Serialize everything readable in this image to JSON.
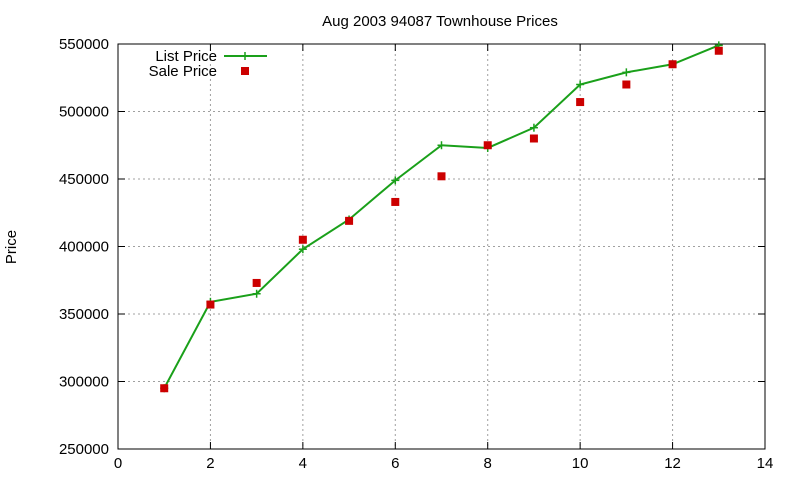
{
  "chart_data": {
    "type": "line",
    "title": "Aug 2003 94087 Townhouse Prices",
    "xlabel": "",
    "ylabel": "Price",
    "xlim": [
      0,
      14
    ],
    "ylim": [
      250000,
      550000
    ],
    "xticks": [
      "0",
      "2",
      "4",
      "6",
      "8",
      "10",
      "12",
      "14"
    ],
    "yticks": [
      "250000",
      "300000",
      "350000",
      "400000",
      "450000",
      "500000",
      "550000"
    ],
    "grid": true,
    "legend_position": "top-left",
    "series": [
      {
        "name": "List Price",
        "style": "line-points",
        "color": "#1aa01a",
        "x": [
          1,
          2,
          3,
          4,
          5,
          6,
          7,
          8,
          9,
          10,
          11,
          12,
          13
        ],
        "y": [
          295000,
          359000,
          365000,
          398000,
          420000,
          449000,
          475000,
          473000,
          488000,
          520000,
          529000,
          535000,
          549000
        ]
      },
      {
        "name": "Sale Price",
        "style": "points",
        "color": "#cc0000",
        "x": [
          1,
          2,
          3,
          4,
          5,
          6,
          7,
          8,
          9,
          10,
          11,
          12,
          13
        ],
        "y": [
          295000,
          357000,
          373000,
          405000,
          419000,
          433000,
          452000,
          475000,
          480000,
          507000,
          520000,
          535000,
          545000
        ]
      }
    ]
  }
}
